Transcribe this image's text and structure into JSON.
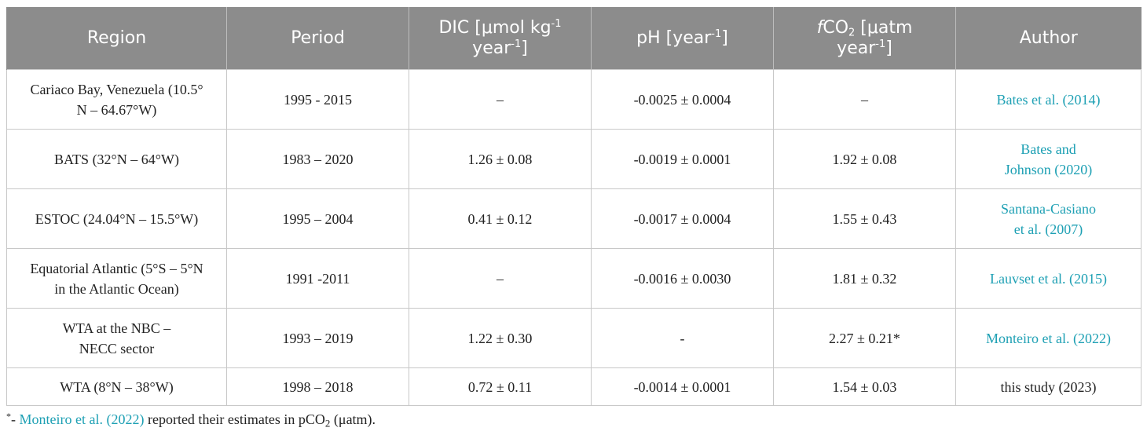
{
  "header": {
    "region": "Region",
    "period": "Period",
    "dic_line1": "DIC [μmol kg",
    "dic_sup1": "-1",
    "dic_line2": "year",
    "dic_sup2": "-1",
    "dic_close": "]",
    "ph_main": "pH [year",
    "ph_sup": "-1",
    "ph_close": "]",
    "fco2_f": "f",
    "fco2_co": "CO",
    "fco2_sub": "2",
    "fco2_line1_rest": " [μatm",
    "fco2_line2": "year",
    "fco2_sup": "-1",
    "fco2_close": "]",
    "author": "Author"
  },
  "rows": [
    {
      "region_l1": "Cariaco Bay, Venezuela (10.5°",
      "region_l2": "N – 64.67°W)",
      "period": "1995 - 2015",
      "dic": "–",
      "ph": "-0.0025 ± 0.0004",
      "fco2": "–",
      "author_l1": "Bates et al. (2014)",
      "author_l2": ""
    },
    {
      "region_l1": "BATS (32°N – 64°W)",
      "region_l2": "",
      "period": "1983 – 2020",
      "dic": "1.26 ± 0.08",
      "ph": "-0.0019 ± 0.0001",
      "fco2": "1.92 ± 0.08",
      "author_l1": "Bates and",
      "author_l2": "Johnson (2020)"
    },
    {
      "region_l1": "ESTOC (24.04°N – 15.5°W)",
      "region_l2": "",
      "period": "1995 – 2004",
      "dic": "0.41 ± 0.12",
      "ph": "-0.0017 ± 0.0004",
      "fco2": "1.55 ± 0.43",
      "author_l1": "Santana-Casiano",
      "author_l2": "et al. (2007)"
    },
    {
      "region_l1": "Equatorial Atlantic (5°S – 5°N",
      "region_l2": "in the Atlantic Ocean)",
      "period": "1991 -2011",
      "dic": "–",
      "ph": "-0.0016 ± 0.0030",
      "fco2": "1.81 ± 0.32",
      "author_l1": "Lauvset et al. (2015)",
      "author_l2": ""
    },
    {
      "region_l1": "WTA at the NBC –",
      "region_l2": "NECC sector",
      "period": "1993 – 2019",
      "dic": "1.22 ± 0.30",
      "ph": "-",
      "fco2": "2.27 ± 0.21*",
      "author_l1": "Monteiro et al. (2022)",
      "author_l2": ""
    },
    {
      "region_l1": "WTA (8°N – 38°W)",
      "region_l2": "",
      "period": "1998 – 2018",
      "dic": "0.72 ± 0.11",
      "ph": "-0.0014 ± 0.0001",
      "fco2": "1.54 ± 0.03",
      "author_l1": "this study (2023)",
      "author_l2": ""
    }
  ],
  "footnote": {
    "mark": "*",
    "dash": "- ",
    "link": "Monteiro et al. (2022)",
    "text": " reported their estimates in pCO",
    "sub": "2",
    "end": " (μatm)."
  },
  "colors": {
    "header_bg": "#8c8c8c",
    "header_text": "#ffffff",
    "link": "#1ea0b4",
    "border": "#c8c8c8"
  }
}
